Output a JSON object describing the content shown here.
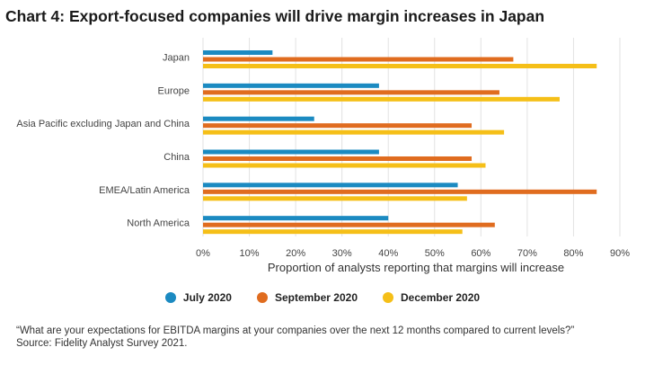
{
  "title": "Chart 4: Export-focused companies will drive margin increases in Japan",
  "chart_data": {
    "type": "bar",
    "orientation": "horizontal",
    "categories": [
      "Japan",
      "Europe",
      "Asia Pacific excluding Japan and China",
      "China",
      "EMEA/Latin America",
      "North America"
    ],
    "series": [
      {
        "name": "July 2020",
        "color": "#1b8ac1",
        "values": [
          15,
          38,
          24,
          38,
          55,
          40
        ]
      },
      {
        "name": "September 2020",
        "color": "#e06c1f",
        "values": [
          67,
          64,
          58,
          58,
          85,
          63
        ]
      },
      {
        "name": "December 2020",
        "color": "#f5bf18",
        "values": [
          85,
          77,
          65,
          61,
          57,
          56
        ]
      }
    ],
    "xlabel": "Proportion of analysts reporting that margins will increase",
    "ylabel": "",
    "xlim": [
      0,
      90
    ],
    "xticks": [
      "0%",
      "10%",
      "20%",
      "30%",
      "40%",
      "50%",
      "60%",
      "70%",
      "80%",
      "90%"
    ],
    "grid": "vertical",
    "legend": "bottom"
  },
  "footnote": {
    "question": "“What are your expectations for EBITDA margins at your companies over the next 12 months compared to current levels?”",
    "source": "Source: Fidelity Analyst Survey 2021."
  }
}
